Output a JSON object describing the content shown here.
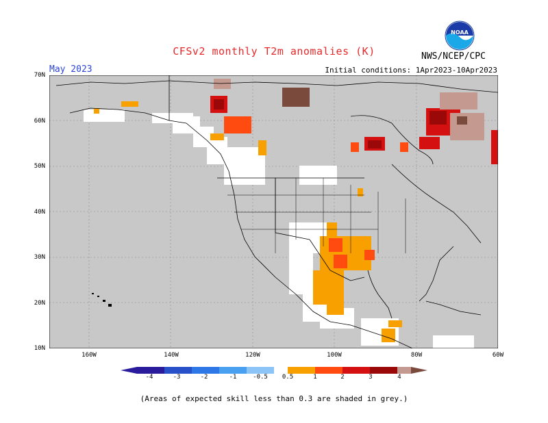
{
  "title": "CFSv2 monthly T2m anomalies (K)",
  "agency": "NWS/NCEP/CPC",
  "logo_text": "NOAA",
  "month": "May 2023",
  "initial_conditions": "Initial conditions: 1Apr2023-10Apr2023",
  "lat_labels": [
    "70N",
    "60N",
    "50N",
    "40N",
    "30N",
    "20N",
    "10N"
  ],
  "lon_labels": [
    "160W",
    "140W",
    "120W",
    "100W",
    "80W",
    "60W"
  ],
  "colorbar": {
    "labels": [
      "-4",
      "-3",
      "-2",
      "-1",
      "-0.5",
      "0.5",
      "1",
      "2",
      "3",
      "4"
    ],
    "colors": [
      "#2a1a9c",
      "#2850c8",
      "#2d78e6",
      "#4aa0f0",
      "#8cc4f8",
      "#ffffff",
      "#f7a000",
      "#ff4a10",
      "#d41010",
      "#9a0808",
      "#c49a90",
      "#7a4a3c"
    ]
  },
  "map_colors": {
    "grey": "#c8c8c8",
    "skill_white": "#ffffff",
    "orange": "#f7a000",
    "red_orange": "#ff4a10",
    "red": "#d41010",
    "dark_red": "#9a0808",
    "pink": "#c49a90",
    "brown": "#7a4a3c"
  },
  "footnote": "(Areas of expected skill less than 0.3 are shaded in grey.)"
}
